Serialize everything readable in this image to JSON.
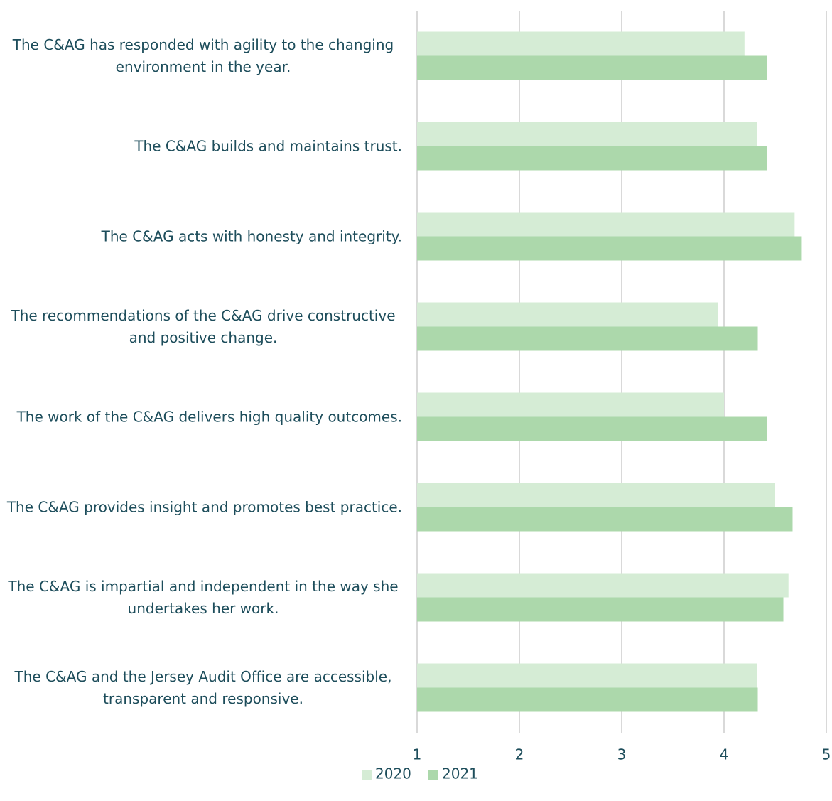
{
  "chart_data": {
    "type": "bar",
    "orientation": "horizontal",
    "categories": [
      "The C&AG has responded with agility to the changing environment in the year.",
      "The C&AG builds and maintains trust.",
      "The C&AG acts with honesty and integrity.",
      "The recommendations of the C&AG drive constructive and positive change.",
      "The work of the C&AG delivers high quality outcomes.",
      "The C&AG provides insight and promotes best practice.",
      "The C&AG is impartial and independent in the way she undertakes her work.",
      "The C&AG and the Jersey Audit Office are accessible, transparent and responsive."
    ],
    "series": [
      {
        "name": "2020",
        "color": "#d5ecd5",
        "values": [
          4.2,
          4.32,
          4.69,
          3.94,
          4.0,
          4.5,
          4.63,
          4.32
        ]
      },
      {
        "name": "2021",
        "color": "#acd8ab",
        "values": [
          4.42,
          4.42,
          4.76,
          4.33,
          4.42,
          4.67,
          4.58,
          4.33
        ]
      }
    ],
    "xlim": [
      1,
      5
    ],
    "xticks": [
      1,
      2,
      3,
      4,
      5
    ],
    "grid": true,
    "legend": "bottom"
  }
}
